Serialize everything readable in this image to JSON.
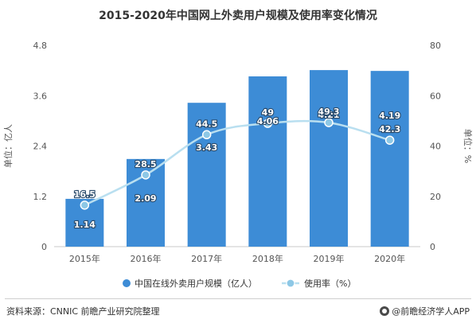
{
  "colors": {
    "bar": "#3d8cd6",
    "line": "#b9dff0",
    "marker": "#8ec8e6",
    "axis": "#c8c8c8",
    "text": "#555555"
  },
  "legend": {
    "bar_label": "中国在线外卖用户规模（亿人）",
    "line_label": "使用率（%）"
  },
  "footer": {
    "source": "资料来源：CNNIC 前瞻产业研究院整理",
    "brand": "@前瞻经济学人APP"
  },
  "chart_data": {
    "type": "bar",
    "title": "2015-2020年中国网上外卖用户规模及使用率变化情况",
    "categories": [
      "2015年",
      "2016年",
      "2017年",
      "2018年",
      "2019年",
      "2020年"
    ],
    "ylabel": "单位：亿人",
    "y2label": "单位：%",
    "ylim": [
      0,
      4.8
    ],
    "y2lim": [
      0,
      80
    ],
    "yticks": [
      "0",
      "1.2",
      "2.4",
      "3.6",
      "4.8"
    ],
    "y2ticks": [
      "0",
      "20",
      "40",
      "60",
      "80"
    ],
    "legend_position": "bottom",
    "grid": false,
    "series": [
      {
        "name": "中国在线外卖用户规模（亿人）",
        "type": "bar",
        "axis": "left",
        "values": [
          1.14,
          2.09,
          3.43,
          4.06,
          4.21,
          4.19
        ],
        "labels": [
          "1.14",
          "2.09",
          "3.43",
          "4.06",
          "4.21",
          "4.19"
        ]
      },
      {
        "name": "使用率（%）",
        "type": "line",
        "axis": "right",
        "values": [
          16.5,
          28.5,
          44.5,
          49,
          49.3,
          42.3
        ],
        "labels": [
          "16.5",
          "28.5",
          "44.5",
          "49",
          "49.3",
          "42.3"
        ]
      }
    ]
  }
}
